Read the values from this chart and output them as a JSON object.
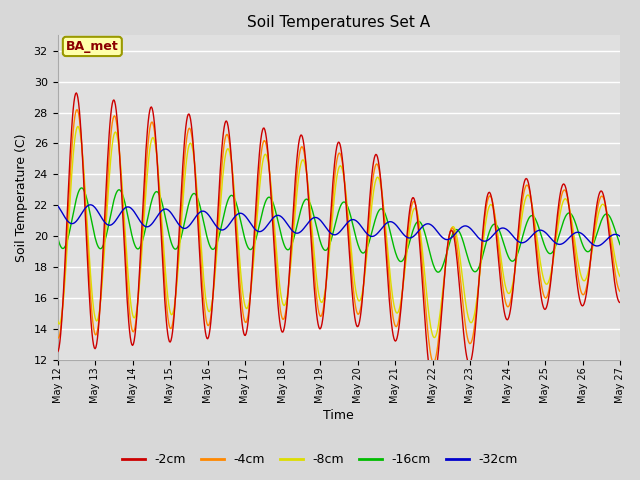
{
  "title": "Soil Temperatures Set A",
  "xlabel": "Time",
  "ylabel": "Soil Temperature (C)",
  "ylim": [
    12,
    33
  ],
  "yticks": [
    12,
    14,
    16,
    18,
    20,
    22,
    24,
    26,
    28,
    30,
    32
  ],
  "colors": {
    "-2cm": "#cc0000",
    "-4cm": "#ff8800",
    "-8cm": "#dddd00",
    "-16cm": "#00bb00",
    "-32cm": "#0000cc"
  },
  "legend_labels": [
    "-2cm",
    "-4cm",
    "-8cm",
    "-16cm",
    "-32cm"
  ],
  "annotation_text": "BA_met",
  "annotation_color": "#8b0000",
  "annotation_bg": "#ffffaa",
  "fig_bg": "#d8d8d8",
  "plot_bg": "#e0e0e0",
  "grid_color": "#ffffff",
  "n_points": 720,
  "n_days": 15
}
